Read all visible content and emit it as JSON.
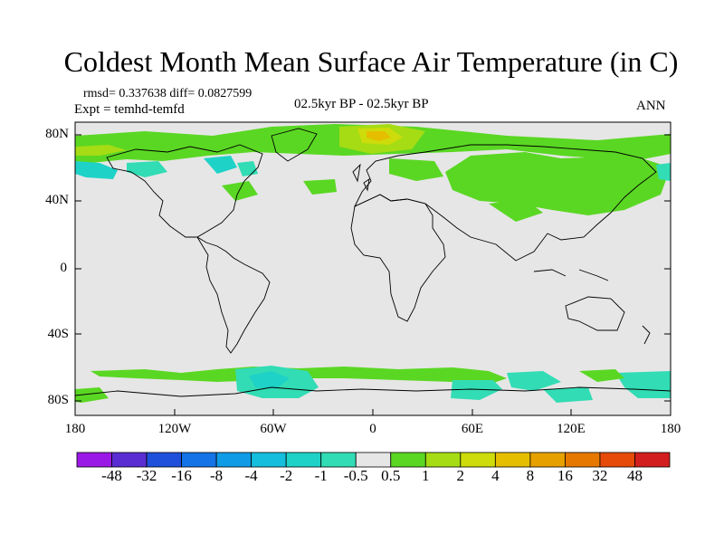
{
  "title": "Coldest Month Mean Surface Air Temperature (in C)",
  "stats_line": "rmsd= 0.337638 diff= 0.0827599",
  "experiment_line": "Expt = temhd-temfd",
  "period_label": "02.5kyr BP - 02.5kyr BP",
  "season_label": "ANN",
  "y_axis_labels": [
    "80N",
    "40N",
    "0",
    "40S",
    "80S"
  ],
  "x_axis_labels": [
    "180",
    "120W",
    "60W",
    "0",
    "60E",
    "120E",
    "180"
  ],
  "colorbar": {
    "labels": [
      "-48",
      "-32",
      "-16",
      "-8",
      "-4",
      "-2",
      "-1",
      "-0.5",
      "0.5",
      "1",
      "2",
      "4",
      "8",
      "16",
      "32",
      "48"
    ],
    "colors": [
      "#9b19e6",
      "#5a2dd2",
      "#1e50dc",
      "#1473e6",
      "#0f9be6",
      "#14bedc",
      "#1ed2c8",
      "#32dcb4",
      "#e6e6e6",
      "#5ad723",
      "#a5dc14",
      "#cddc0a",
      "#e6be00",
      "#e6a000",
      "#e67800",
      "#e64b0a",
      "#d21e1e"
    ]
  },
  "legend_colors": {
    "ocean_background": "#e6e6e6",
    "positive_small": "#5ad723",
    "positive_mid": "#a5dc14",
    "positive_high": "#cddc0a",
    "positive_peak": "#e6be00",
    "negative_small": "#32dcb4",
    "negative_mid": "#1ed2c8",
    "coast": "#000000"
  }
}
